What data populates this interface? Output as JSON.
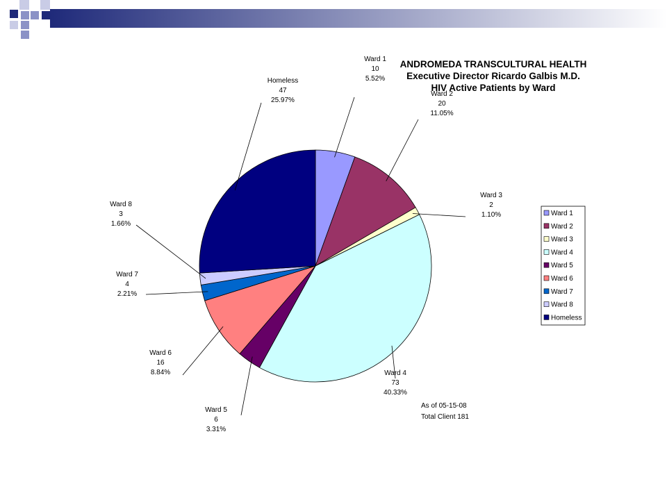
{
  "colors": {
    "bar_dark": "#1f2a7a",
    "bar_light": "#ffffff",
    "square_dark": "#1f2a7a",
    "square_mid": "#8b92c6",
    "square_light": "#c9cce6"
  },
  "chart_data": {
    "type": "pie",
    "title_lines": [
      "ANDROMEDA TRANSCULTURAL HEALTH",
      "Executive Director Ricardo Galbis M.D.",
      "HIV Active Patients by Ward"
    ],
    "slices": [
      {
        "name": "Ward 1",
        "value": 10,
        "percent": "5.52%",
        "color": "#9999ff"
      },
      {
        "name": "Ward 2",
        "value": 20,
        "percent": "11.05%",
        "color": "#993366"
      },
      {
        "name": "Ward 3",
        "value": 2,
        "percent": "1.10%",
        "color": "#ffffcc"
      },
      {
        "name": "Ward 4",
        "value": 73,
        "percent": "40.33%",
        "color": "#ccffff"
      },
      {
        "name": "Ward 5",
        "value": 6,
        "percent": "3.31%",
        "color": "#660066"
      },
      {
        "name": "Ward 6",
        "value": 16,
        "percent": "8.84%",
        "color": "#ff8080"
      },
      {
        "name": "Ward 7",
        "value": 4,
        "percent": "2.21%",
        "color": "#0066cc"
      },
      {
        "name": "Ward 8",
        "value": 3,
        "percent": "1.66%",
        "color": "#ccccff"
      },
      {
        "name": "Homeless",
        "value": 47,
        "percent": "25.97%",
        "color": "#000080"
      }
    ],
    "legend_position": "right",
    "note_lines": [
      "As of 05-15-08",
      "Total Client 181"
    ]
  }
}
